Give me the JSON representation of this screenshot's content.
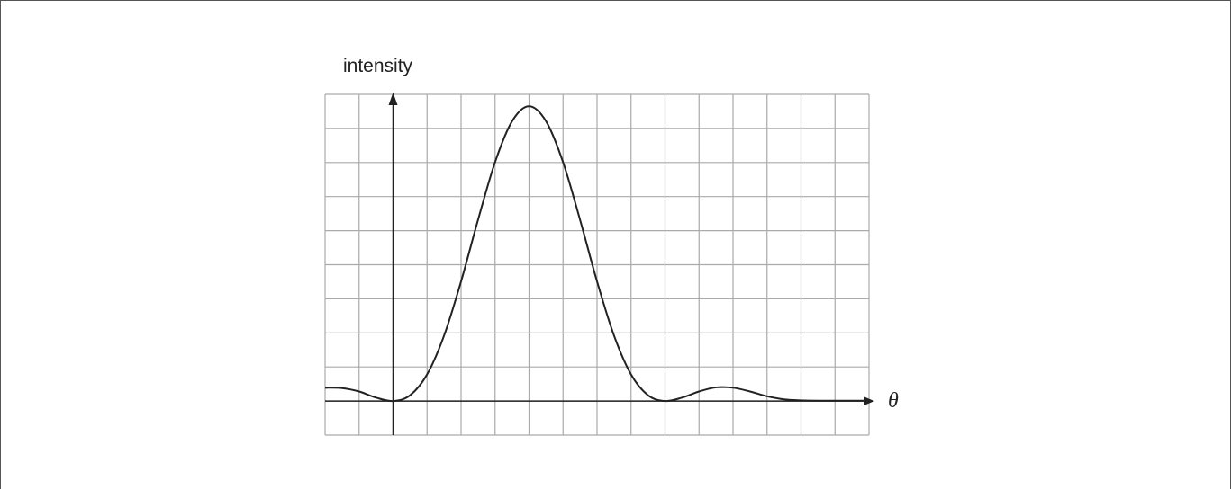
{
  "chart_data": {
    "type": "line",
    "y_label": "intensity",
    "x_label": "θ",
    "xlim": [
      -2,
      14
    ],
    "ylim": [
      -1,
      9
    ],
    "grid": true,
    "color": "#222222",
    "x": [
      -2,
      -1.5,
      -1,
      -0.5,
      0,
      0.5,
      1,
      1.5,
      2,
      2.5,
      3,
      3.5,
      4,
      4.5,
      5,
      5.5,
      6,
      6.5,
      7,
      7.5,
      8,
      8.5,
      9,
      9.5,
      10,
      10.5,
      11,
      11.5,
      12,
      12.5,
      13,
      13.5,
      14
    ],
    "values": [
      0.39,
      0.38,
      0.28,
      0.1,
      0,
      0.17,
      0.78,
      1.92,
      3.51,
      5.32,
      7.01,
      8.21,
      8.65,
      8.21,
      7.01,
      5.32,
      3.51,
      1.92,
      0.78,
      0.17,
      0,
      0.1,
      0.28,
      0.4,
      0.39,
      0.28,
      0.14,
      0.05,
      0.02,
      0.01,
      0.01,
      0.01,
      0.01
    ]
  }
}
